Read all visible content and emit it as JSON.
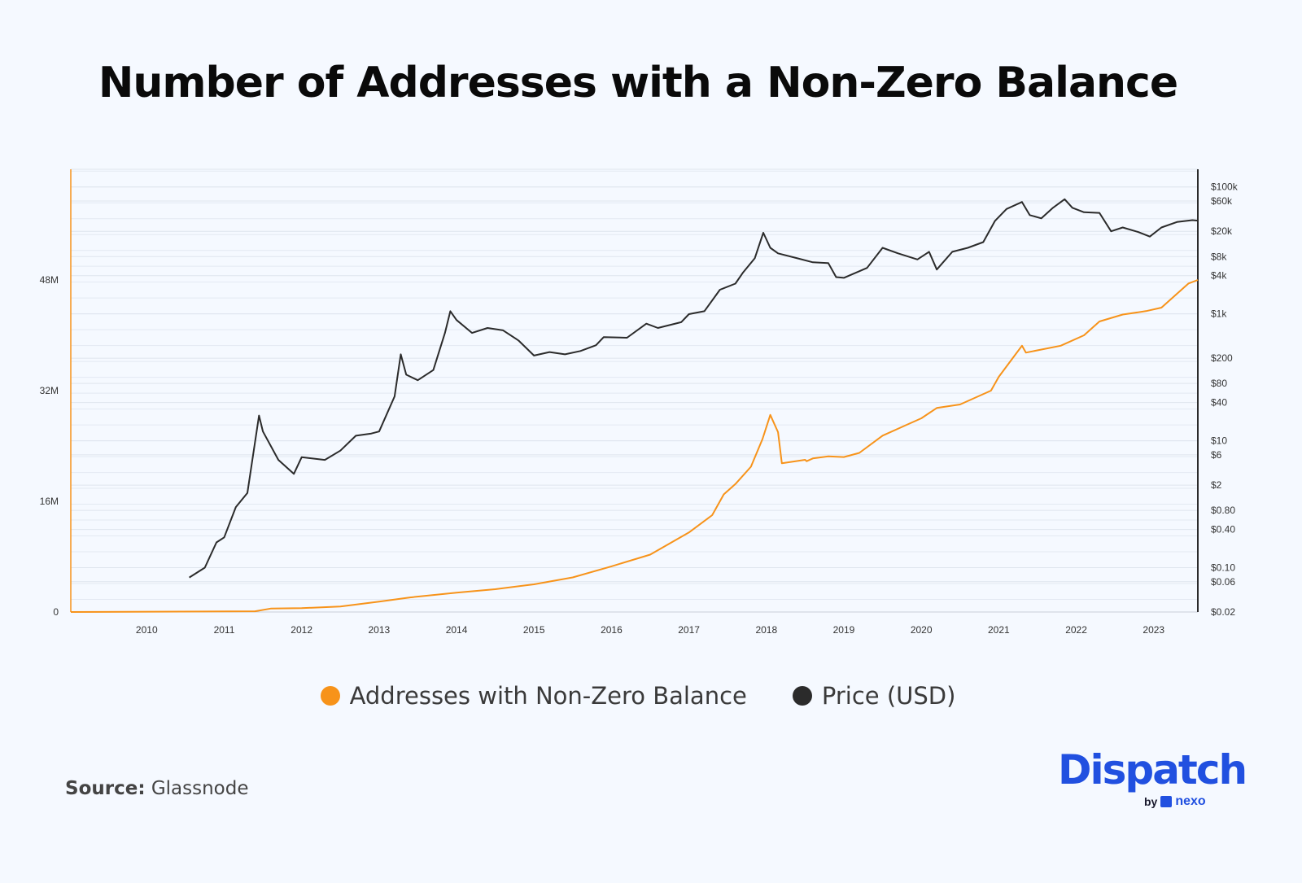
{
  "chart_data": {
    "type": "line",
    "title": "Number of Addresses with a Non-Zero Balance",
    "source_label": "Source:",
    "source": "Glassnode",
    "x_ticks": [
      "2010",
      "2011",
      "2012",
      "2013",
      "2014",
      "2015",
      "2016",
      "2017",
      "2018",
      "2019",
      "2020",
      "2021",
      "2022",
      "2023"
    ],
    "xlim": [
      2009.02,
      2023.57
    ],
    "left_axis": {
      "scale": "linear",
      "ylim": [
        0,
        64000000
      ],
      "ticks": [
        {
          "value": 0,
          "label": "0"
        },
        {
          "value": 16000000,
          "label": "16M"
        },
        {
          "value": 32000000,
          "label": "32M"
        },
        {
          "value": 48000000,
          "label": "48M"
        }
      ]
    },
    "right_axis": {
      "scale": "log",
      "ylim": [
        0.02,
        190000
      ],
      "ticks": [
        {
          "value": 100000,
          "label": "$100k"
        },
        {
          "value": 60000,
          "label": "$60k"
        },
        {
          "value": 20000,
          "label": "$20k"
        },
        {
          "value": 8000,
          "label": "$8k"
        },
        {
          "value": 4000,
          "label": "$4k"
        },
        {
          "value": 1000,
          "label": "$1k"
        },
        {
          "value": 200,
          "label": "$200"
        },
        {
          "value": 80,
          "label": "$80"
        },
        {
          "value": 40,
          "label": "$40"
        },
        {
          "value": 10,
          "label": "$10"
        },
        {
          "value": 6,
          "label": "$6"
        },
        {
          "value": 2,
          "label": "$2"
        },
        {
          "value": 0.8,
          "label": "$0.80"
        },
        {
          "value": 0.4,
          "label": "$0.40"
        },
        {
          "value": 0.1,
          "label": "$0.10"
        },
        {
          "value": 0.06,
          "label": "$0.06"
        },
        {
          "value": 0.02,
          "label": "$0.02"
        }
      ]
    },
    "grid": true,
    "legend_placement": "bottom",
    "series": [
      {
        "name": "Addresses with Non-Zero Balance",
        "axis": "left",
        "color": "#f7931a",
        "points": [
          [
            2009.02,
            0
          ],
          [
            2011.4,
            100000
          ],
          [
            2011.6,
            500000
          ],
          [
            2012.0,
            550000
          ],
          [
            2012.5,
            800000
          ],
          [
            2013.0,
            1500000
          ],
          [
            2013.4,
            2100000
          ],
          [
            2014.0,
            2800000
          ],
          [
            2014.5,
            3300000
          ],
          [
            2015.0,
            4000000
          ],
          [
            2015.5,
            5000000
          ],
          [
            2016.0,
            6600000
          ],
          [
            2016.5,
            8300000
          ],
          [
            2017.0,
            11500000
          ],
          [
            2017.3,
            14000000
          ],
          [
            2017.45,
            17000000
          ],
          [
            2017.6,
            18500000
          ],
          [
            2017.8,
            21000000
          ],
          [
            2017.95,
            25000000
          ],
          [
            2018.05,
            28500000
          ],
          [
            2018.15,
            26000000
          ],
          [
            2018.2,
            21500000
          ],
          [
            2018.5,
            22000000
          ],
          [
            2018.52,
            21800000
          ],
          [
            2018.6,
            22200000
          ],
          [
            2018.8,
            22500000
          ],
          [
            2019.0,
            22400000
          ],
          [
            2019.2,
            23000000
          ],
          [
            2019.5,
            25500000
          ],
          [
            2019.8,
            27000000
          ],
          [
            2020.0,
            28000000
          ],
          [
            2020.2,
            29500000
          ],
          [
            2020.5,
            30000000
          ],
          [
            2020.9,
            32000000
          ],
          [
            2021.0,
            34000000
          ],
          [
            2021.2,
            37000000
          ],
          [
            2021.3,
            38500000
          ],
          [
            2021.35,
            37500000
          ],
          [
            2021.8,
            38500000
          ],
          [
            2022.1,
            40000000
          ],
          [
            2022.3,
            42000000
          ],
          [
            2022.6,
            43000000
          ],
          [
            2022.9,
            43500000
          ],
          [
            2023.1,
            44000000
          ],
          [
            2023.3,
            46000000
          ],
          [
            2023.45,
            47500000
          ],
          [
            2023.57,
            48000000
          ]
        ]
      },
      {
        "name": "Price (USD)",
        "axis": "right",
        "color": "#2b2b2b",
        "points": [
          [
            2010.55,
            0.07
          ],
          [
            2010.75,
            0.1
          ],
          [
            2010.9,
            0.25
          ],
          [
            2011.0,
            0.3
          ],
          [
            2011.15,
            0.9
          ],
          [
            2011.3,
            1.5
          ],
          [
            2011.45,
            25
          ],
          [
            2011.5,
            14
          ],
          [
            2011.7,
            5
          ],
          [
            2011.9,
            3
          ],
          [
            2012.0,
            5.5
          ],
          [
            2012.3,
            5
          ],
          [
            2012.5,
            7
          ],
          [
            2012.7,
            12
          ],
          [
            2012.9,
            13
          ],
          [
            2013.0,
            14
          ],
          [
            2013.2,
            50
          ],
          [
            2013.28,
            230
          ],
          [
            2013.35,
            110
          ],
          [
            2013.5,
            90
          ],
          [
            2013.7,
            130
          ],
          [
            2013.85,
            500
          ],
          [
            2013.92,
            1100
          ],
          [
            2014.0,
            800
          ],
          [
            2014.2,
            500
          ],
          [
            2014.4,
            600
          ],
          [
            2014.6,
            550
          ],
          [
            2014.8,
            380
          ],
          [
            2015.0,
            220
          ],
          [
            2015.2,
            250
          ],
          [
            2015.4,
            230
          ],
          [
            2015.6,
            260
          ],
          [
            2015.8,
            320
          ],
          [
            2015.9,
            430
          ],
          [
            2016.2,
            420
          ],
          [
            2016.45,
            700
          ],
          [
            2016.6,
            600
          ],
          [
            2016.9,
            740
          ],
          [
            2017.0,
            990
          ],
          [
            2017.2,
            1100
          ],
          [
            2017.4,
            2400
          ],
          [
            2017.6,
            3000
          ],
          [
            2017.7,
            4500
          ],
          [
            2017.85,
            7500
          ],
          [
            2017.96,
            19000
          ],
          [
            2018.05,
            11000
          ],
          [
            2018.15,
            9000
          ],
          [
            2018.4,
            7500
          ],
          [
            2018.6,
            6500
          ],
          [
            2018.8,
            6300
          ],
          [
            2018.9,
            3800
          ],
          [
            2019.0,
            3700
          ],
          [
            2019.3,
            5300
          ],
          [
            2019.5,
            11000
          ],
          [
            2019.7,
            9000
          ],
          [
            2019.95,
            7200
          ],
          [
            2020.1,
            9500
          ],
          [
            2020.2,
            5000
          ],
          [
            2020.4,
            9500
          ],
          [
            2020.6,
            11000
          ],
          [
            2020.8,
            13500
          ],
          [
            2020.95,
            29000
          ],
          [
            2021.1,
            45000
          ],
          [
            2021.3,
            58000
          ],
          [
            2021.4,
            36000
          ],
          [
            2021.55,
            32000
          ],
          [
            2021.7,
            47000
          ],
          [
            2021.85,
            64000
          ],
          [
            2021.95,
            47000
          ],
          [
            2022.1,
            40000
          ],
          [
            2022.3,
            39000
          ],
          [
            2022.45,
            20000
          ],
          [
            2022.6,
            23000
          ],
          [
            2022.8,
            19500
          ],
          [
            2022.95,
            16500
          ],
          [
            2023.1,
            23000
          ],
          [
            2023.3,
            28000
          ],
          [
            2023.5,
            30000
          ],
          [
            2023.57,
            29500
          ]
        ]
      }
    ]
  },
  "legend": [
    {
      "label": "Addresses with Non-Zero Balance",
      "color": "#f7931a"
    },
    {
      "label": "Price (USD)",
      "color": "#2b2b2b"
    }
  ],
  "logo": {
    "brand": "Dispatch",
    "by": "by",
    "partner": "nexo"
  }
}
